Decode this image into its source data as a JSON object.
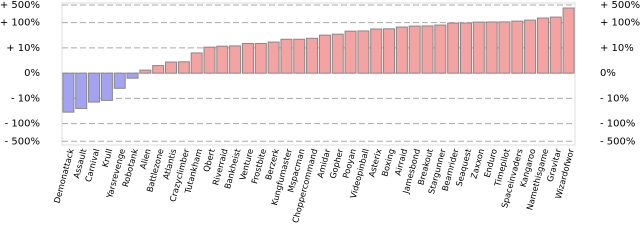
{
  "chart_data": {
    "type": "bar",
    "yscale": "symlog",
    "linthresh": 10,
    "categories": [
      "Demonattack",
      "Assault",
      "Carnival",
      "Krull",
      "Yarsrevenge",
      "Robotank",
      "Alien",
      "Battlezone",
      "Atlantis",
      "Crazyclimber",
      "Tutankham",
      "Qbert",
      "Riverraid",
      "Bankheist",
      "Venture",
      "Frostbite",
      "Berzerk",
      "Kungfumaster",
      "Mspacman",
      "Choppercommand",
      "Amidar",
      "Gopher",
      "Pooyan",
      "Videopinball",
      "Asterix",
      "Boxing",
      "Airraid",
      "Jamesbond",
      "Breakout",
      "Stargunner",
      "Beamrider",
      "Seaquest",
      "Zaxxon",
      "Enduro",
      "Timepilot",
      "Spaceinvaders",
      "Kangaroo",
      "Namethisgame",
      "Gravitar",
      "Wizardofwor"
    ],
    "values": [
      -35,
      -25,
      -14,
      -12,
      -6,
      -2,
      1.2,
      3,
      4.4,
      4.5,
      8,
      10.7,
      11.7,
      12,
      15,
      15,
      17,
      22,
      22,
      24,
      32,
      35,
      46,
      47,
      56,
      57,
      67,
      73,
      74,
      80,
      96,
      97,
      105,
      106,
      107,
      115,
      126,
      152,
      166,
      380
    ],
    "positive_color": "#f4a3a3",
    "negative_color": "#a3a3f0",
    "ylim": [
      -700,
      600
    ],
    "yticks": [
      {
        "value": 500,
        "label": "+ 500%"
      },
      {
        "value": 100,
        "label": "+ 100%"
      },
      {
        "value": 10,
        "label": "+ 10%"
      },
      {
        "value": 0,
        "label": "0%"
      },
      {
        "value": -10,
        "label": "- 10%"
      },
      {
        "value": -100,
        "label": "- 100%"
      },
      {
        "value": -500,
        "label": "- 500%"
      }
    ],
    "grid": true
  }
}
